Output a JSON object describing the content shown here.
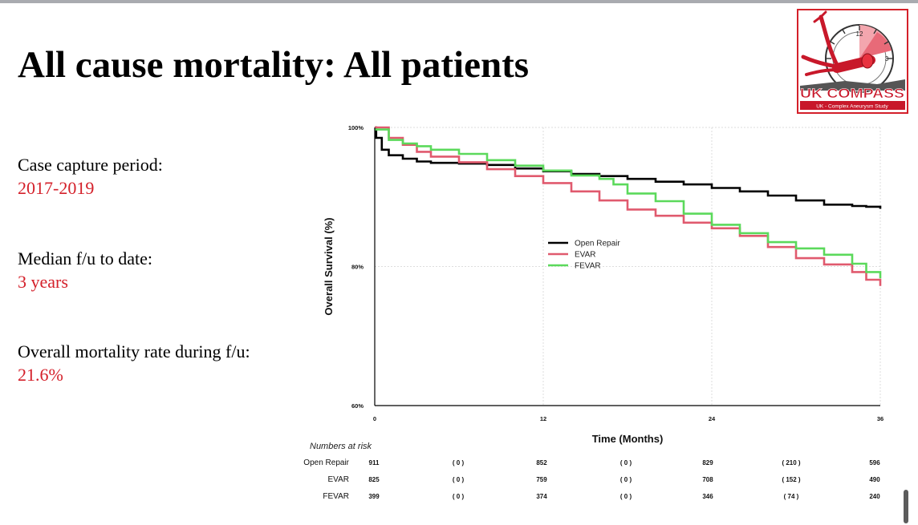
{
  "slide": {
    "title": "All cause mortality: All patients",
    "accent_color": "#d4202a",
    "info": [
      {
        "label": "Case capture period:",
        "value": "2017-2019"
      },
      {
        "label": "Median f/u to date:",
        "value": "3 years"
      },
      {
        "label": "Overall mortality rate during f/u:",
        "value": "21.6%"
      }
    ]
  },
  "logo": {
    "name": "UK COMPASS",
    "tagline": "UK - Complex Aneurysm Study",
    "clock_numbers": [
      "12",
      "3"
    ]
  },
  "chart_data": {
    "type": "line",
    "xlabel": "Time (Months)",
    "ylabel": "Overall Survival (%)",
    "xlim": [
      0,
      36
    ],
    "ylim": [
      60,
      100
    ],
    "xticks": [
      "0",
      "12",
      "24",
      "36"
    ],
    "yticks": [
      "60%",
      "80%",
      "100%"
    ],
    "grid": true,
    "legend_position": "center",
    "series": [
      {
        "name": "Open Repair",
        "color": "#000000",
        "points": [
          [
            0,
            100
          ],
          [
            0.1,
            98.5
          ],
          [
            0.5,
            96.8
          ],
          [
            1,
            96
          ],
          [
            2,
            95.5
          ],
          [
            3,
            95.1
          ],
          [
            4,
            94.9
          ],
          [
            6,
            94.8
          ],
          [
            8,
            94.6
          ],
          [
            10,
            94.1
          ],
          [
            12,
            93.7
          ],
          [
            14,
            93.3
          ],
          [
            16,
            93
          ],
          [
            18,
            92.6
          ],
          [
            20,
            92.2
          ],
          [
            22,
            91.8
          ],
          [
            24,
            91.3
          ],
          [
            26,
            90.8
          ],
          [
            28,
            90.2
          ],
          [
            30,
            89.5
          ],
          [
            32,
            88.9
          ],
          [
            34,
            88.7
          ],
          [
            35,
            88.6
          ],
          [
            36,
            88.3
          ]
        ]
      },
      {
        "name": "EVAR",
        "color": "#e05a6e",
        "points": [
          [
            0,
            100
          ],
          [
            1,
            98.5
          ],
          [
            2,
            97.5
          ],
          [
            3,
            96.5
          ],
          [
            4,
            95.8
          ],
          [
            6,
            95
          ],
          [
            8,
            94
          ],
          [
            10,
            93
          ],
          [
            12,
            92
          ],
          [
            14,
            90.8
          ],
          [
            16,
            89.5
          ],
          [
            18,
            88.2
          ],
          [
            20,
            87.3
          ],
          [
            22,
            86.3
          ],
          [
            24,
            85.5
          ],
          [
            26,
            84.4
          ],
          [
            28,
            82.8
          ],
          [
            30,
            81.2
          ],
          [
            32,
            80.3
          ],
          [
            34,
            79.2
          ],
          [
            35,
            78.1
          ],
          [
            36,
            77.2
          ]
        ]
      },
      {
        "name": "FEVAR",
        "color": "#5bd95b",
        "points": [
          [
            0,
            99.7
          ],
          [
            1,
            98.2
          ],
          [
            2,
            97.7
          ],
          [
            3,
            97.3
          ],
          [
            4,
            96.8
          ],
          [
            6,
            96.2
          ],
          [
            8,
            95.3
          ],
          [
            10,
            94.5
          ],
          [
            12,
            93.8
          ],
          [
            14,
            93.1
          ],
          [
            16,
            92.6
          ],
          [
            17,
            91.8
          ],
          [
            18,
            90.5
          ],
          [
            20,
            89.4
          ],
          [
            22,
            87.6
          ],
          [
            24,
            86
          ],
          [
            26,
            84.8
          ],
          [
            28,
            83.5
          ],
          [
            30,
            82.6
          ],
          [
            32,
            81.7
          ],
          [
            34,
            80.4
          ],
          [
            35,
            79.2
          ],
          [
            36,
            78.3
          ]
        ]
      }
    ],
    "numbers_at_risk": {
      "title": "Numbers at risk",
      "rows": [
        {
          "label": "Open Repair",
          "values": [
            "911",
            "( 0 )",
            "852",
            "( 0 )",
            "829",
            "( 210 )",
            "596"
          ]
        },
        {
          "label": "EVAR",
          "values": [
            "825",
            "( 0 )",
            "759",
            "( 0 )",
            "708",
            "( 152 )",
            "490"
          ]
        },
        {
          "label": "FEVAR",
          "values": [
            "399",
            "( 0 )",
            "374",
            "( 0 )",
            "346",
            "( 74 )",
            "240"
          ]
        }
      ]
    }
  }
}
